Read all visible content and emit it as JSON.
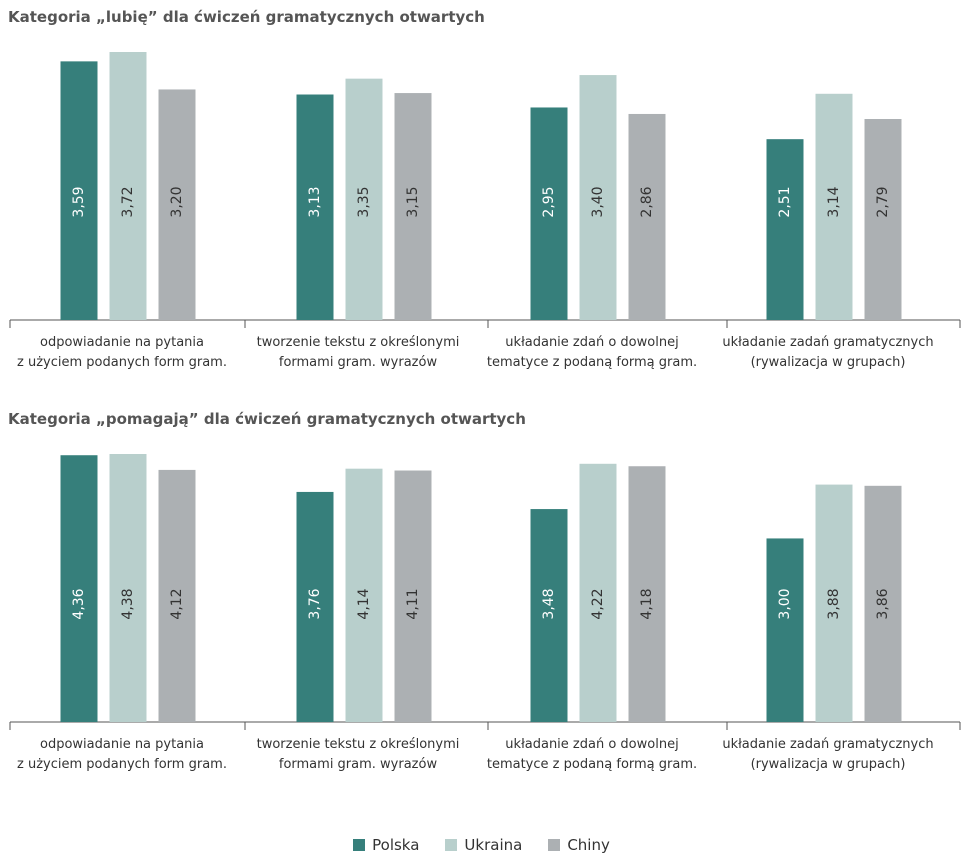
{
  "legend": [
    {
      "name": "Polska",
      "color": "#367f7b"
    },
    {
      "name": "Ukraina",
      "color": "#b8cfcc"
    },
    {
      "name": "Chiny",
      "color": "#acb0b3"
    }
  ],
  "chart_data": [
    {
      "type": "bar",
      "title": "Kategoria „lubię” dla ćwiczeń gramatycznych otwartych",
      "categories": [
        [
          "odpowiadanie na pytania",
          "z użyciem podanych form gram."
        ],
        [
          "tworzenie tekstu z określonymi",
          "formami gram. wyrazów"
        ],
        [
          "układanie zdań o dowolnej",
          "tematyce z podaną formą gram."
        ],
        [
          "układanie zadań gramatycznych",
          "(rywalizacja w grupach)"
        ]
      ],
      "series": [
        {
          "name": "Polska",
          "values": [
            3.59,
            3.13,
            2.95,
            2.51
          ],
          "labels": [
            "3,59",
            "3,13",
            "2,95",
            "2,51"
          ]
        },
        {
          "name": "Ukraina",
          "values": [
            3.72,
            3.35,
            3.4,
            3.14
          ],
          "labels": [
            "3,72",
            "3,35",
            "3,40",
            "3,14"
          ]
        },
        {
          "name": "Chiny",
          "values": [
            3.2,
            3.15,
            2.86,
            2.79
          ],
          "labels": [
            "3,20",
            "3,15",
            "2,86",
            "2,79"
          ]
        }
      ],
      "ylim": [
        0,
        3.72
      ],
      "grid": false,
      "legend_position": "bottom"
    },
    {
      "type": "bar",
      "title": "Kategoria „pomagają” dla ćwiczeń gramatycznych otwartych",
      "categories": [
        [
          "odpowiadanie na pytania",
          "z użyciem podanych form gram."
        ],
        [
          "tworzenie tekstu z określonymi",
          "formami gram. wyrazów"
        ],
        [
          "układanie zdań o dowolnej",
          "tematyce z podaną formą gram."
        ],
        [
          "układanie zadań gramatycznych",
          "(rywalizacja w grupach)"
        ]
      ],
      "series": [
        {
          "name": "Polska",
          "values": [
            4.36,
            3.76,
            3.48,
            3.0
          ],
          "labels": [
            "4,36",
            "3,76",
            "3,48",
            "3,00"
          ]
        },
        {
          "name": "Ukraina",
          "values": [
            4.38,
            4.14,
            4.22,
            3.88
          ],
          "labels": [
            "4,38",
            "4,14",
            "4,22",
            "3,88"
          ]
        },
        {
          "name": "Chiny",
          "values": [
            4.12,
            4.11,
            4.18,
            3.86
          ],
          "labels": [
            "4,12",
            "4,11",
            "4,18",
            "3,86"
          ]
        }
      ],
      "ylim": [
        0,
        4.38
      ],
      "grid": false,
      "legend_position": "bottom"
    }
  ]
}
